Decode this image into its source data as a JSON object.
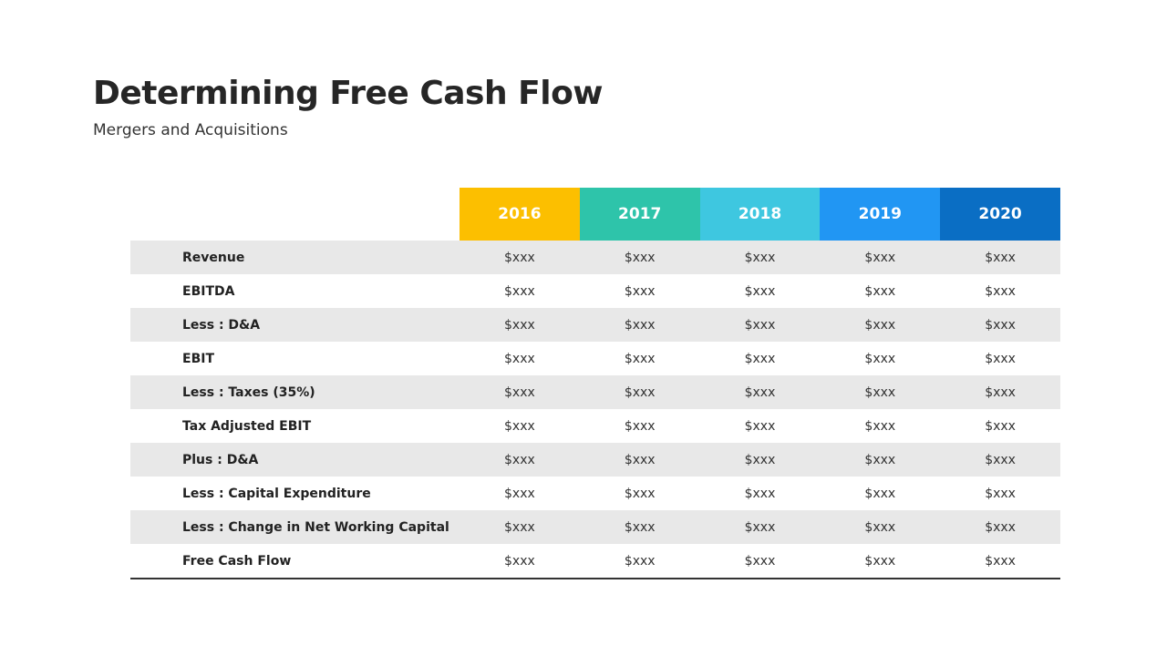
{
  "title": "Determining Free Cash Flow",
  "subtitle": "Mergers and Acquisitions",
  "table": {
    "years": [
      "2016",
      "2017",
      "2018",
      "2019",
      "2020"
    ],
    "year_colors": [
      "#FCBF00",
      "#2EC4AA",
      "#3EC7E0",
      "#2196F3",
      "#0A6EC4"
    ],
    "rows": [
      {
        "label": "Revenue",
        "values": [
          "$xxx",
          "$xxx",
          "$xxx",
          "$xxx",
          "$xxx"
        ]
      },
      {
        "label": "EBITDA",
        "values": [
          "$xxx",
          "$xxx",
          "$xxx",
          "$xxx",
          "$xxx"
        ]
      },
      {
        "label": "Less : D&A",
        "values": [
          "$xxx",
          "$xxx",
          "$xxx",
          "$xxx",
          "$xxx"
        ]
      },
      {
        "label": "EBIT",
        "values": [
          "$xxx",
          "$xxx",
          "$xxx",
          "$xxx",
          "$xxx"
        ]
      },
      {
        "label": "Less : Taxes (35%)",
        "values": [
          "$xxx",
          "$xxx",
          "$xxx",
          "$xxx",
          "$xxx"
        ]
      },
      {
        "label": "Tax Adjusted EBIT",
        "values": [
          "$xxx",
          "$xxx",
          "$xxx",
          "$xxx",
          "$xxx"
        ]
      },
      {
        "label": "Plus : D&A",
        "values": [
          "$xxx",
          "$xxx",
          "$xxx",
          "$xxx",
          "$xxx"
        ]
      },
      {
        "label": "Less : Capital Expenditure",
        "values": [
          "$xxx",
          "$xxx",
          "$xxx",
          "$xxx",
          "$xxx"
        ]
      },
      {
        "label": "Less : Change in Net Working Capital",
        "values": [
          "$xxx",
          "$xxx",
          "$xxx",
          "$xxx",
          "$xxx"
        ]
      },
      {
        "label": "Free Cash Flow",
        "values": [
          "$xxx",
          "$xxx",
          "$xxx",
          "$xxx",
          "$xxx"
        ]
      }
    ]
  }
}
